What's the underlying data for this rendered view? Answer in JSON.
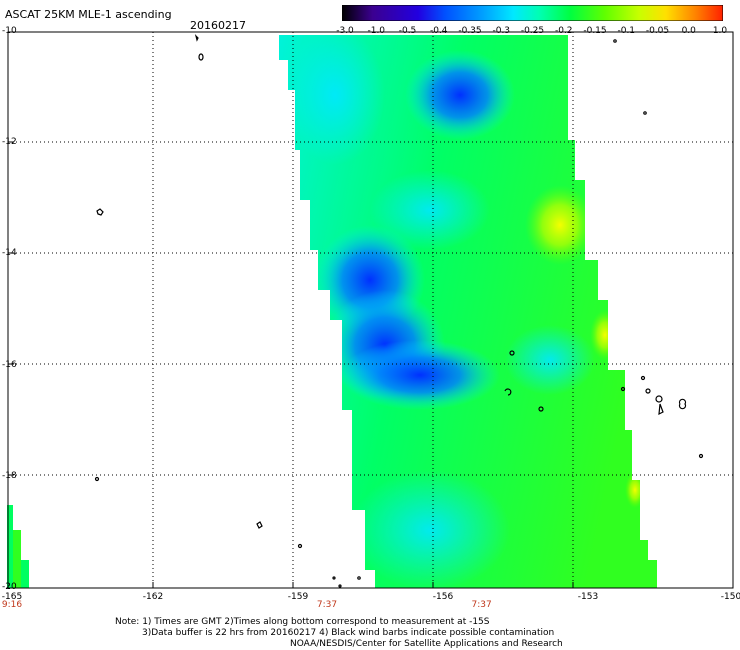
{
  "header": {
    "title": "ASCAT 25KM MLE-1 ascending",
    "date": "20160217"
  },
  "colorbar": {
    "labels": [
      "-3.0",
      "-1.0",
      "-0.5",
      "-0.4",
      "-0.35",
      "-0.3",
      "-0.25",
      "-0.2",
      "-0.15",
      "-0.1",
      "-0.05",
      "0.0",
      "1.0"
    ],
    "colors": [
      "#000000",
      "#3b0090",
      "#2200e0",
      "#0050ff",
      "#00a0ff",
      "#00e8ff",
      "#00ffb0",
      "#00ff40",
      "#60ff00",
      "#c8ff00",
      "#ffe000",
      "#ff8000",
      "#ff2000"
    ]
  },
  "axes": {
    "lat_labels": [
      "-10",
      "-12",
      "-14",
      "-16",
      "-18",
      "-20"
    ],
    "lon_labels": [
      "-165",
      "-162",
      "-159",
      "-156",
      "-153",
      "-150"
    ],
    "time_labels": [
      {
        "lon": -165,
        "text": "9:16"
      },
      {
        "lon": -158.4,
        "text": "7:37"
      },
      {
        "lon": -155.2,
        "text": "7:37"
      }
    ]
  },
  "notes": {
    "line1": "Note: 1) Times are GMT 2)Times along bottom correspond to measurement at -15S",
    "line2": "3)Data buffer is 22 hrs from 20160217 4) Black wind barbs indicate possible contamination",
    "line3": "NOAA/NESDIS/Center for Satellite Applications and Research"
  },
  "map_features": {
    "swath": "ascending pass",
    "islands": "black outlines"
  }
}
